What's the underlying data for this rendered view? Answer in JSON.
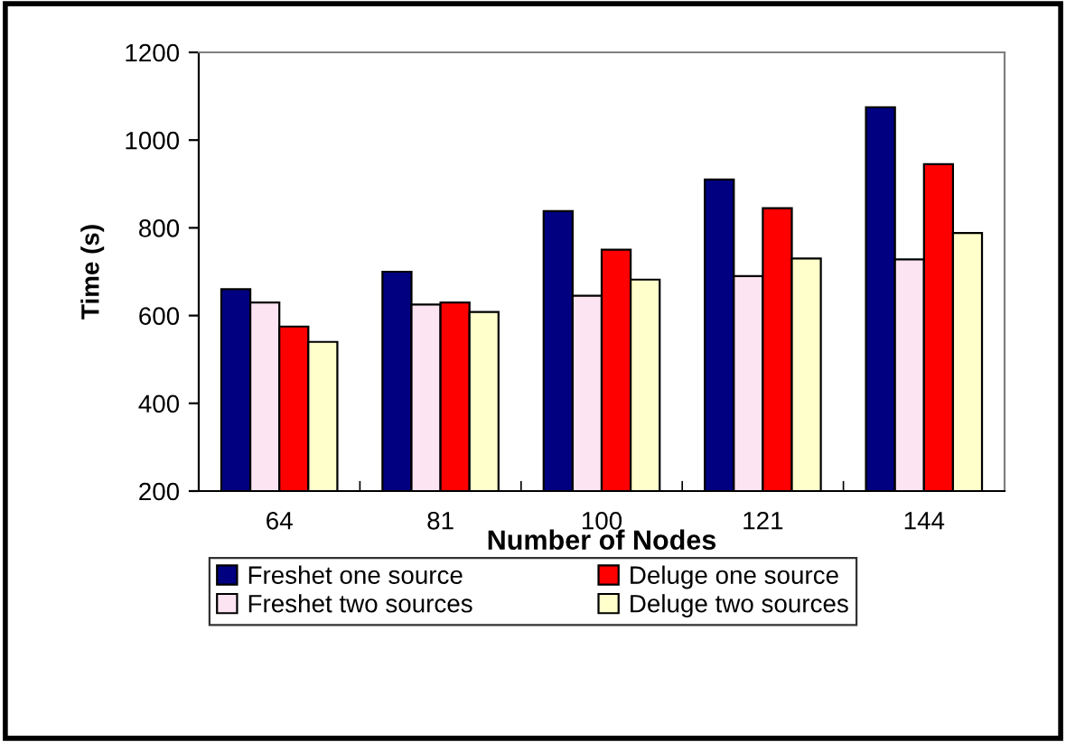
{
  "chart_data": {
    "type": "bar",
    "xlabel": "Number of Nodes",
    "ylabel": "Time (s)",
    "categories": [
      "64",
      "81",
      "100",
      "121",
      "144"
    ],
    "series": [
      {
        "name": "Freshet one source",
        "color": "#000080",
        "values": [
          660,
          700,
          838,
          910,
          1075
        ]
      },
      {
        "name": "Freshet two sources",
        "color": "#fce4f2",
        "values": [
          630,
          625,
          645,
          690,
          728
        ]
      },
      {
        "name": "Deluge one source",
        "color": "#ff0000",
        "values": [
          575,
          630,
          750,
          845,
          945
        ]
      },
      {
        "name": "Deluge two sources",
        "color": "#ffffcc",
        "values": [
          540,
          608,
          682,
          730,
          788
        ]
      }
    ],
    "ylim": [
      200,
      1200
    ],
    "yticks": [
      200,
      400,
      600,
      800,
      1000,
      1200
    ],
    "grid": false,
    "legend": "bottom"
  }
}
